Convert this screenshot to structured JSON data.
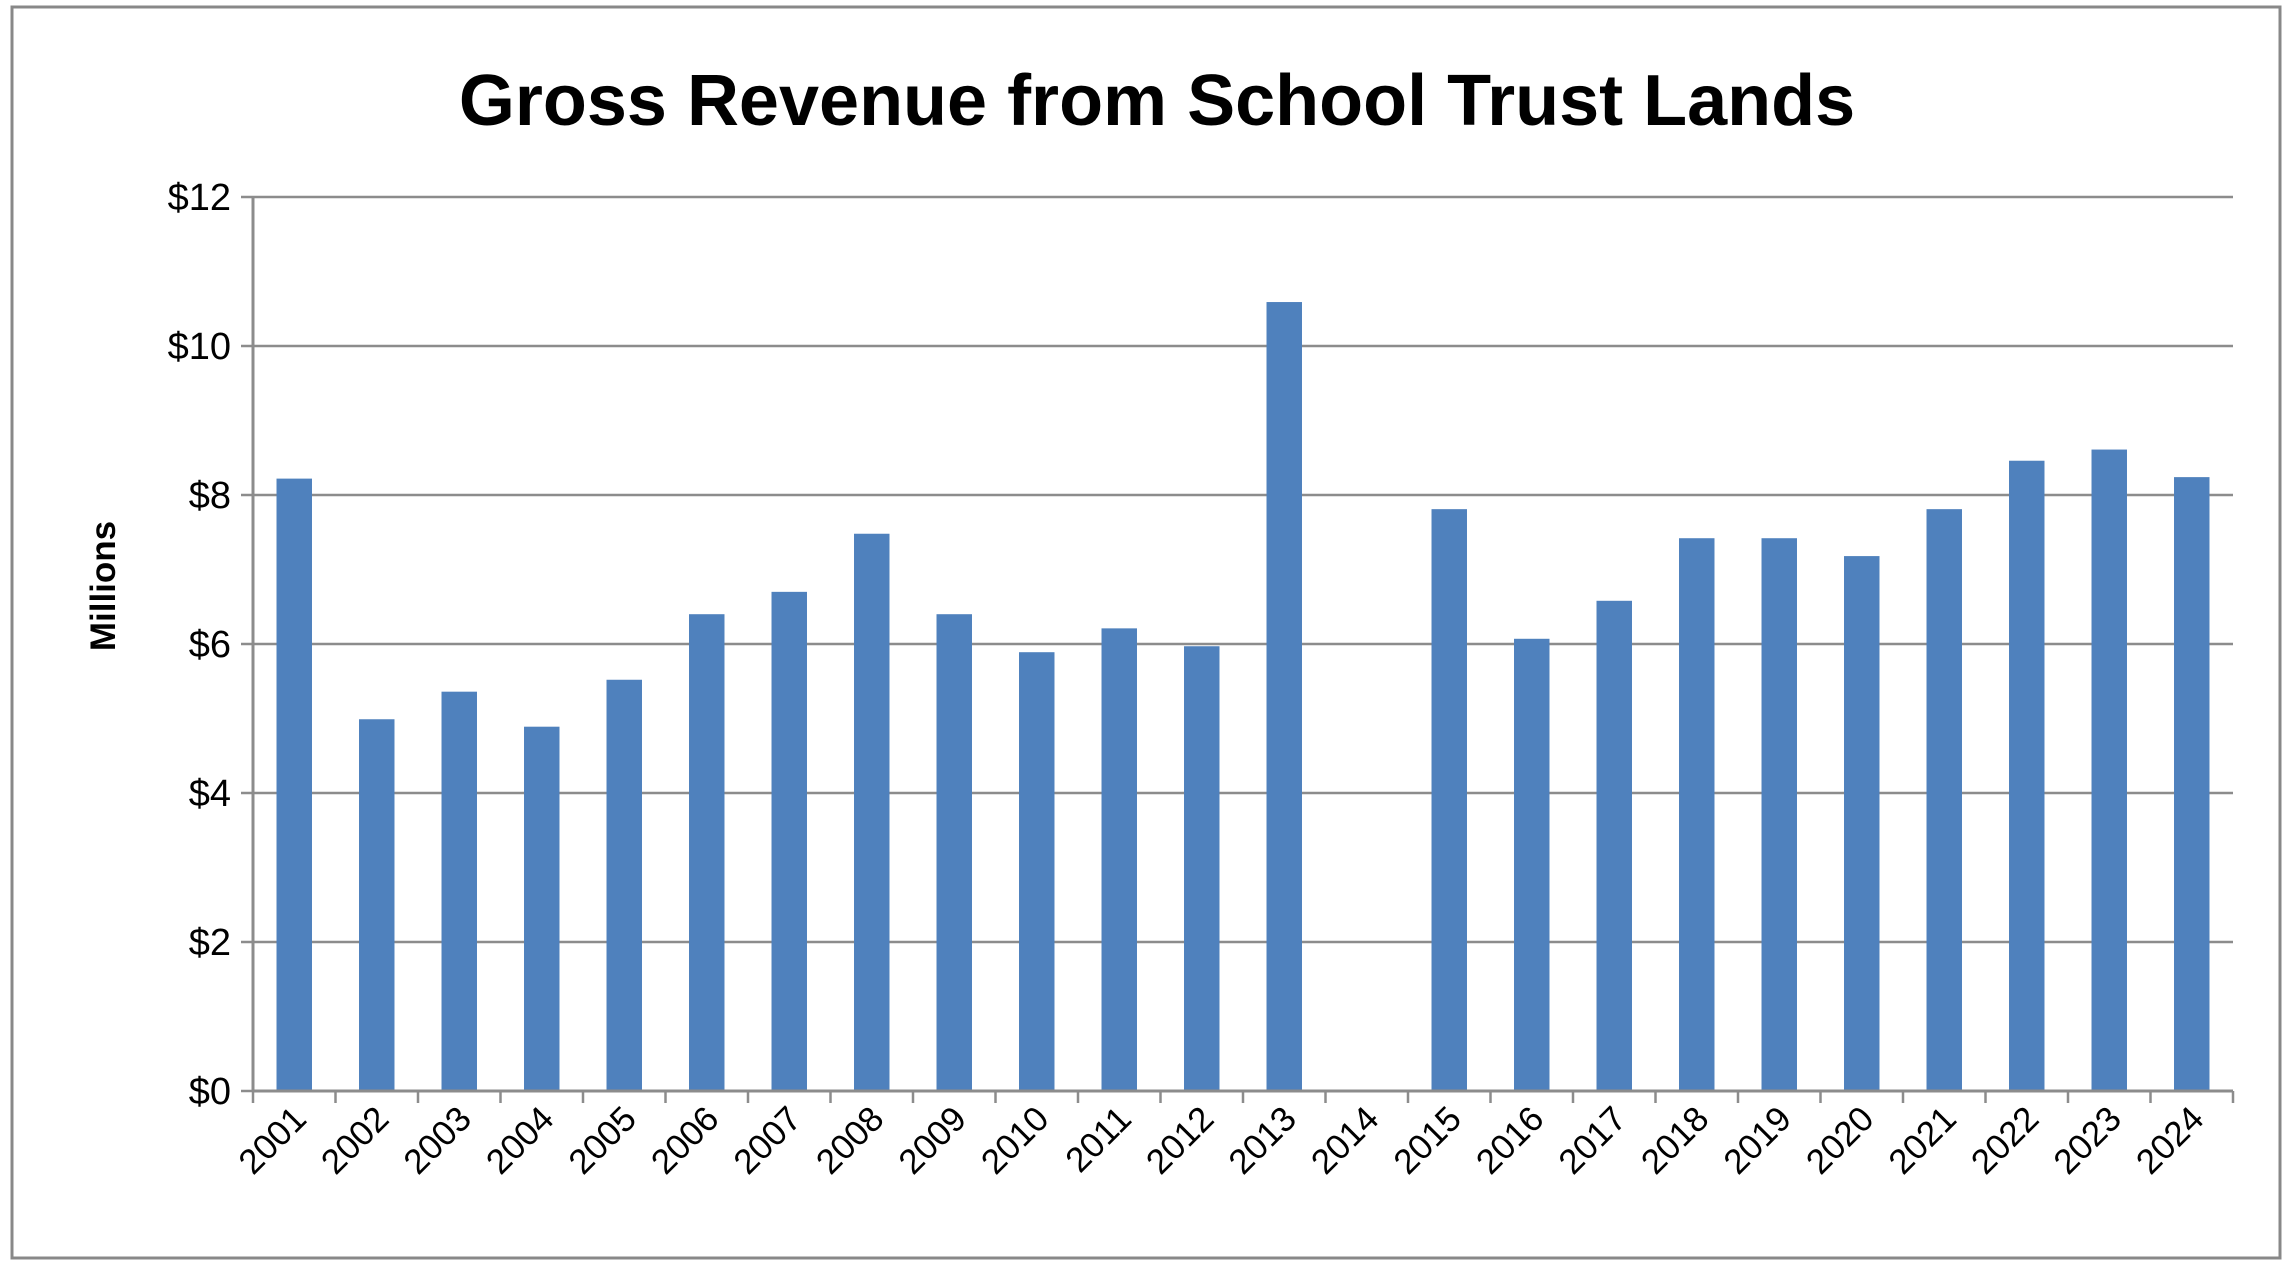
{
  "chart_data": {
    "type": "bar",
    "title": "Gross Revenue from School Trust Lands",
    "xlabel": "",
    "ylabel": "Millions",
    "ylim": [
      0,
      12
    ],
    "yticks": [
      0,
      2,
      4,
      6,
      8,
      10,
      12
    ],
    "ytick_labels": [
      "$0",
      "$2",
      "$4",
      "$6",
      "$8",
      "$10",
      "$12"
    ],
    "grid": true,
    "legend": "none",
    "bar_color": "#4f81bd",
    "categories": [
      "2001",
      "2002",
      "2003",
      "2004",
      "2005",
      "2006",
      "2007",
      "2008",
      "2009",
      "2010",
      "2011",
      "2012",
      "2013",
      "2014",
      "2015",
      "2016",
      "2017",
      "2018",
      "2019",
      "2020",
      "2021",
      "2022",
      "2023",
      "2024"
    ],
    "series": [
      {
        "name": "Gross Revenue",
        "values": [
          8.22,
          4.99,
          5.36,
          4.89,
          5.52,
          6.4,
          6.7,
          7.48,
          6.4,
          5.89,
          6.21,
          5.97,
          10.59,
          0,
          7.81,
          6.07,
          6.58,
          7.42,
          7.42,
          7.18,
          7.81,
          8.46,
          8.61,
          8.24
        ]
      }
    ]
  }
}
